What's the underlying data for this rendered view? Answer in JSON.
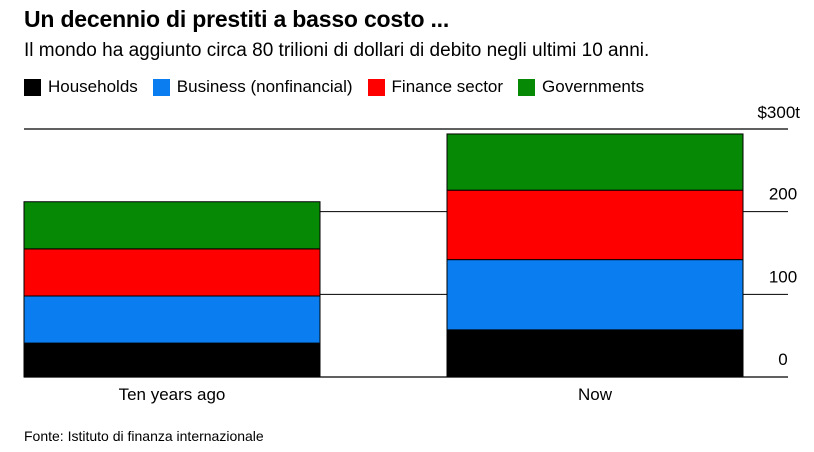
{
  "header": {
    "title": "Un decennio di prestiti a basso costo ...",
    "subtitle": "Il mondo ha aggiunto circa 80 trilioni di dollari di debito negli ultimi 10 anni."
  },
  "legend": {
    "items": [
      {
        "label": "Households",
        "color": "#000000"
      },
      {
        "label": "Business (nonfinancial)",
        "color": "#0a7ef0"
      },
      {
        "label": "Finance sector",
        "color": "#ff0000"
      },
      {
        "label": "Governments",
        "color": "#068a06"
      }
    ]
  },
  "footer": {
    "source": "Fonte: Istituto di finanza internazionale"
  },
  "chart_data": {
    "type": "bar",
    "stacked": true,
    "orientation": "vertical",
    "categories": [
      "Ten years ago",
      "Now"
    ],
    "series": [
      {
        "name": "Households",
        "color": "#000000",
        "values": [
          41,
          57
        ]
      },
      {
        "name": "Business (nonfinancial)",
        "color": "#0a7ef0",
        "values": [
          57,
          85
        ]
      },
      {
        "name": "Finance sector",
        "color": "#ff0000",
        "values": [
          57,
          84
        ]
      },
      {
        "name": "Governments",
        "color": "#068a06",
        "values": [
          57,
          68
        ]
      }
    ],
    "totals": [
      212,
      294
    ],
    "y_axis": {
      "position": "right",
      "ylim": [
        0,
        300
      ],
      "ticks": [
        0,
        100,
        200,
        300
      ],
      "tick_labels": [
        "0",
        "100",
        "200",
        "$300t"
      ]
    },
    "grid": true,
    "legend_position": "top"
  }
}
